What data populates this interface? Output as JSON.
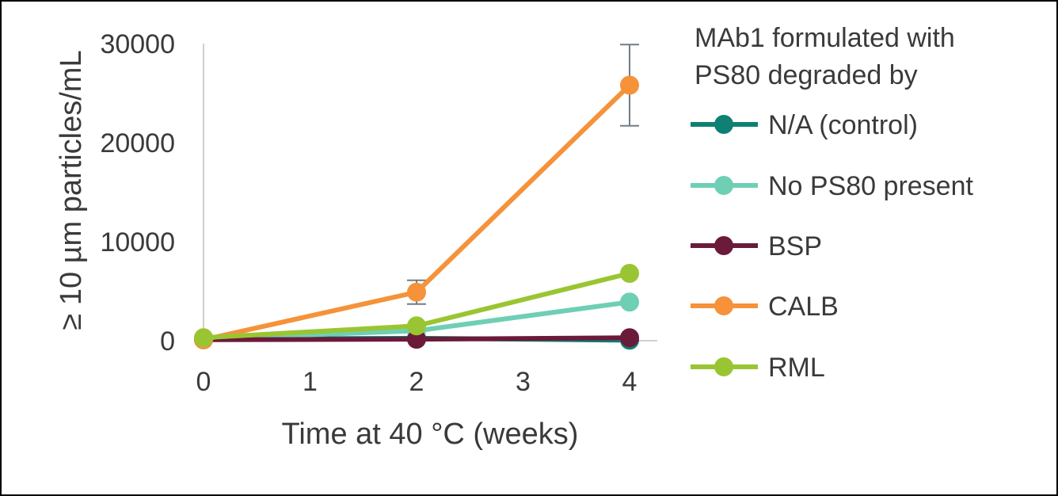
{
  "chart_data": {
    "type": "line",
    "title": "",
    "xlabel": "Time at 40 °C (weeks)",
    "ylabel": "≥ 10 µm particles/mL",
    "xlim": [
      0,
      4
    ],
    "ylim": [
      0,
      30000
    ],
    "x_ticks": [
      "0",
      "1",
      "2",
      "3",
      "4"
    ],
    "y_ticks": [
      "0",
      "10000",
      "20000",
      "30000"
    ],
    "grid": false,
    "legend": {
      "position": "right",
      "title_lines": [
        "MAb1 formulated with",
        "PS80 degraded by"
      ]
    },
    "series": [
      {
        "name": "N/A (control)",
        "color": "#0e8074",
        "x": [
          0,
          2,
          4
        ],
        "y": [
          150,
          250,
          50
        ]
      },
      {
        "name": "No PS80 present",
        "color": "#6ecfb5",
        "x": [
          0,
          2,
          4
        ],
        "y": [
          200,
          1000,
          3900
        ]
      },
      {
        "name": "BSP",
        "color": "#6b1a3a",
        "x": [
          0,
          2,
          4
        ],
        "y": [
          100,
          150,
          300
        ]
      },
      {
        "name": "CALB",
        "color": "#f5923a",
        "x": [
          0,
          2,
          4
        ],
        "y": [
          100,
          4900,
          25800
        ],
        "error": [
          0,
          1200,
          4100
        ]
      },
      {
        "name": "RML",
        "color": "#9ac532",
        "x": [
          0,
          2,
          4
        ],
        "y": [
          300,
          1500,
          6800
        ]
      }
    ]
  }
}
